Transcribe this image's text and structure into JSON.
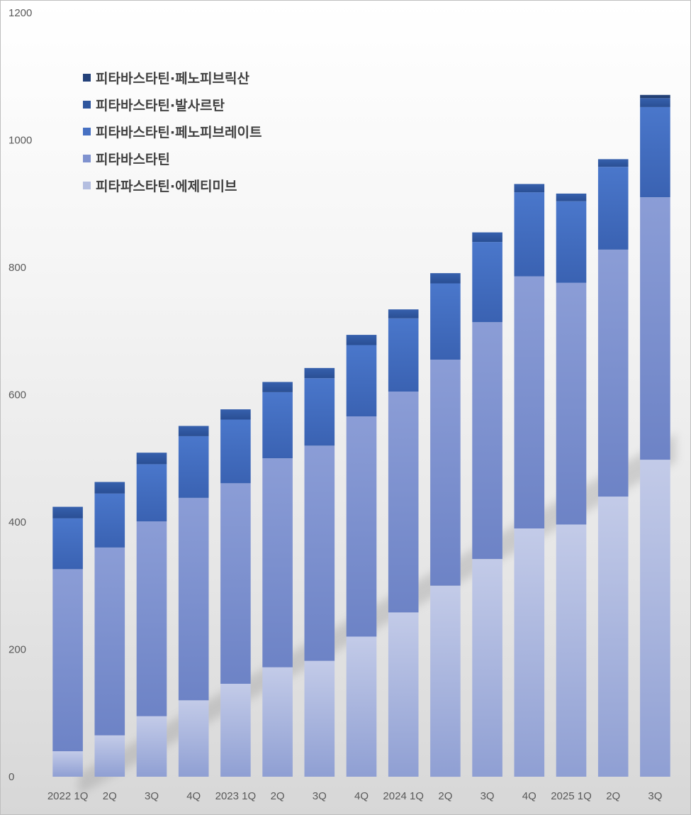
{
  "chart_data": {
    "type": "bar",
    "stacked": true,
    "title": "",
    "xlabel": "",
    "ylabel": "",
    "ylim": [
      0,
      1200
    ],
    "yticks": [
      "0",
      "200",
      "400",
      "600",
      "800",
      "1000",
      "1200"
    ],
    "grid": false,
    "legend_position": "top-left",
    "categories": [
      "2022 1Q",
      "2Q",
      "3Q",
      "4Q",
      "2023 1Q",
      "2Q",
      "3Q",
      "4Q",
      "2024 1Q",
      "2Q",
      "3Q",
      "4Q",
      "2025 1Q",
      "2Q",
      "3Q"
    ],
    "legend_order": [
      "피타바스타틴·페노피브릭산",
      "피타바스타틴·발사르탄",
      "피타바스타틴·페노피브레이트",
      "피타바스타틴",
      "피타파스타틴·에제티미브"
    ],
    "series": [
      {
        "name": "피타파스타틴·에제티미브",
        "color": "#b4bee0",
        "values": [
          40,
          65,
          95,
          120,
          146,
          172,
          182,
          220,
          258,
          300,
          342,
          390,
          396,
          440,
          498
        ]
      },
      {
        "name": "피타바스타틴",
        "color": "#7f92cf",
        "values": [
          286,
          295,
          306,
          318,
          315,
          328,
          338,
          346,
          347,
          355,
          372,
          396,
          380,
          388,
          412
        ]
      },
      {
        "name": "피타바스타틴·페노피브레이트",
        "color": "#4670c2",
        "values": [
          80,
          85,
          90,
          97,
          100,
          104,
          106,
          112,
          115,
          120,
          126,
          132,
          128,
          130,
          142
        ]
      },
      {
        "name": "피타바스타틴·발사르탄",
        "color": "#2f569e",
        "values": [
          18,
          18,
          18,
          16,
          16,
          16,
          16,
          16,
          14,
          16,
          15,
          13,
          12,
          12,
          14
        ]
      },
      {
        "name": "피타바스타틴·페노피브릭산",
        "color": "#24427a",
        "values": [
          0,
          0,
          0,
          0,
          0,
          0,
          0,
          0,
          0,
          0,
          0,
          0,
          0,
          0,
          5
        ]
      }
    ]
  }
}
